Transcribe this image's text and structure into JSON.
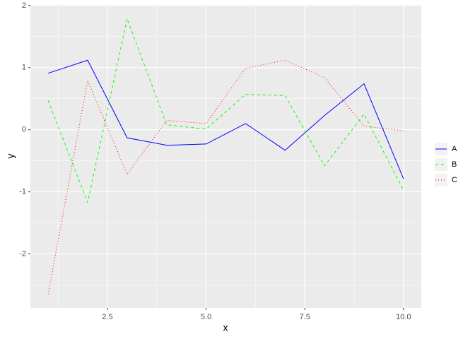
{
  "chart_data": {
    "type": "line",
    "x": [
      1,
      2,
      3,
      4,
      5,
      6,
      7,
      8,
      9,
      10
    ],
    "series": [
      {
        "name": "A",
        "color": "#0000ff",
        "linetype": "solid",
        "values": [
          0.91,
          1.12,
          -0.13,
          -0.25,
          -0.23,
          0.1,
          -0.33,
          0.23,
          0.74,
          -0.79
        ]
      },
      {
        "name": "B",
        "color": "#00ff00",
        "linetype": "dashed",
        "values": [
          0.47,
          -1.17,
          1.79,
          0.08,
          0.01,
          0.57,
          0.55,
          -0.58,
          0.25,
          -0.97
        ]
      },
      {
        "name": "C",
        "color": "#ff0000",
        "linetype": "dotted",
        "values": [
          -2.65,
          0.79,
          -0.72,
          0.15,
          0.1,
          0.99,
          1.12,
          0.84,
          0.06,
          -0.02
        ]
      }
    ],
    "x_label": "x",
    "y_label": "y",
    "xlim": [
      0.55,
      10.45
    ],
    "ylim": [
      -2.87,
      2.01
    ],
    "xticks": [
      {
        "value": 2.5,
        "label": "2.5"
      },
      {
        "value": 5,
        "label": "5.0"
      },
      {
        "value": 7.5,
        "label": "7.5"
      },
      {
        "value": 10,
        "label": "10.0"
      }
    ],
    "yticks": [
      -2,
      -1,
      0,
      1,
      2
    ],
    "grid": true,
    "legend": "right"
  }
}
